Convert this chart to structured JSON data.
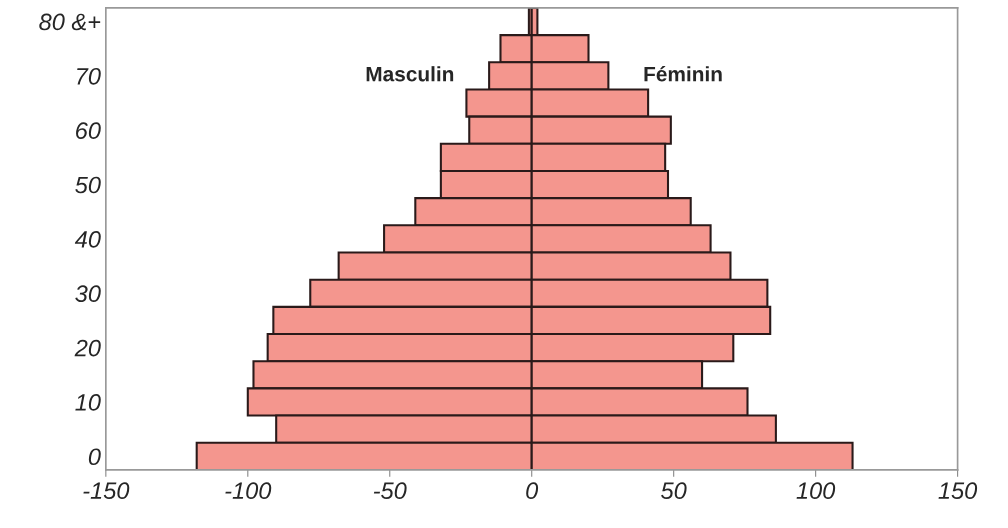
{
  "chart_data": {
    "type": "bar",
    "orientation": "horizontal",
    "stacked": true,
    "categories": [
      "80 &+",
      null,
      "70",
      null,
      "60",
      null,
      "50",
      null,
      "40",
      null,
      "30",
      null,
      "20",
      null,
      "10",
      null,
      "0"
    ],
    "series": [
      {
        "name": "Masculin",
        "color": "#f4968e",
        "values": [
          -1,
          -11,
          -15,
          -23,
          -22,
          -32,
          -32,
          -41,
          -52,
          -68,
          -78,
          -91,
          -93,
          -98,
          -100,
          -90,
          -118
        ]
      },
      {
        "name": "Féminin",
        "color": "#f4968e",
        "values": [
          2,
          20,
          27,
          41,
          49,
          47,
          48,
          56,
          63,
          70,
          83,
          84,
          71,
          60,
          76,
          86,
          113
        ]
      }
    ],
    "xlim": [
      -150,
      150
    ],
    "xticks": [
      -150,
      -100,
      -50,
      0,
      50,
      100,
      150
    ],
    "grid": false,
    "legend": false
  }
}
